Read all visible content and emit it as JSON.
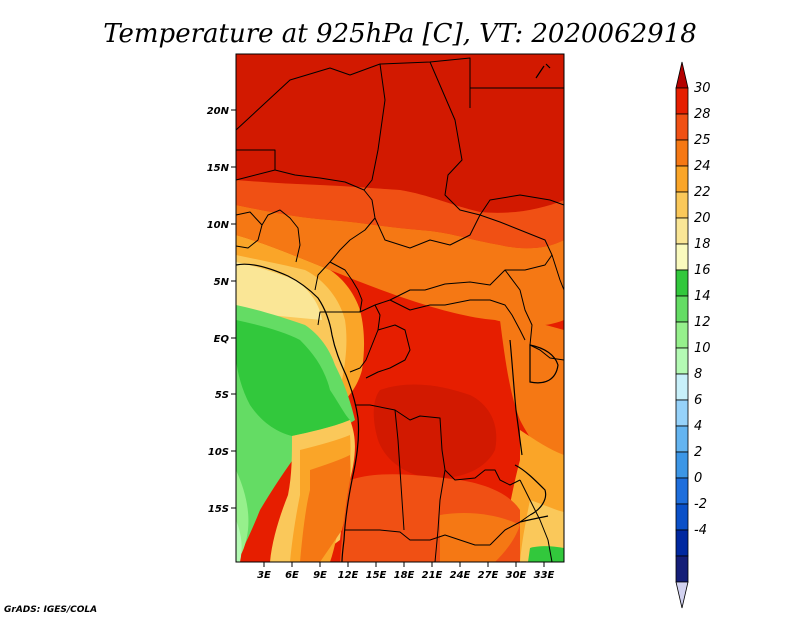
{
  "title": "Temperature at 925hPa [C], VT: 2020062918",
  "credit": "GrADS: IGES/COLA",
  "map": {
    "lat_labels": [
      "20N",
      "15N",
      "10N",
      "5N",
      "EQ",
      "5S",
      "10S",
      "15S"
    ],
    "lon_labels": [
      "3E",
      "6E",
      "9E",
      "12E",
      "15E",
      "18E",
      "21E",
      "24E",
      "27E",
      "30E",
      "33E"
    ]
  },
  "colorbar": {
    "labels": [
      "30",
      "28",
      "25",
      "24",
      "22",
      "20",
      "18",
      "16",
      "14",
      "12",
      "10",
      "8",
      "6",
      "4",
      "2",
      "0",
      "-2",
      "-4"
    ],
    "colors": [
      "#b40000",
      "#e61e00",
      "#f05014",
      "#f57814",
      "#faa528",
      "#fac85a",
      "#fae696",
      "#fafabe",
      "#32c83c",
      "#64dc64",
      "#96f08c",
      "#b4fab4",
      "#c8f0fa",
      "#96d2fa",
      "#64b4f0",
      "#3c96e6",
      "#1e6edc",
      "#0a50c8",
      "#0028a0",
      "#141e78",
      "#d2d2f0"
    ]
  }
}
